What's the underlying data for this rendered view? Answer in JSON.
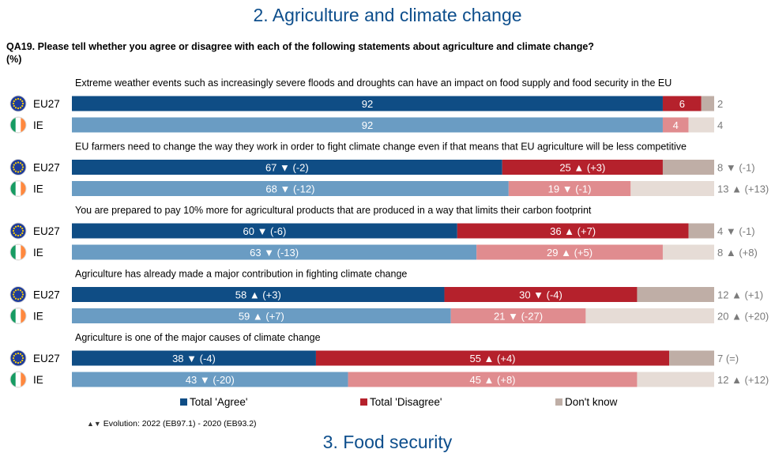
{
  "page_title": "2. Agriculture and climate change",
  "next_section_title": "3. Food security",
  "question": "QA19. Please tell whether you agree or disagree with each of the following statements about agriculture and climate change?",
  "unit": "(%)",
  "legend": {
    "agree": "Total 'Agree'",
    "disagree": "Total 'Disagree'",
    "dont_know": "Don't know"
  },
  "evolution_note": "Evolution: 2022 (EB97.1) - 2020 (EB93.2)",
  "colors": {
    "eu_agree": "#0f4d85",
    "ie_agree": "#6a9cc3",
    "eu_disagree": "#b5212c",
    "ie_disagree": "#e08c8f",
    "eu_dk": "#bfaea6",
    "ie_dk": "#e6dcd6",
    "arrow": "#8a8a8a"
  },
  "chart_data": {
    "type": "bar",
    "orientation": "horizontal-stacked",
    "unit": "%",
    "xlim": [
      0,
      100
    ],
    "series_names": [
      "Total 'Agree'",
      "Total 'Disagree'",
      "Don't know"
    ],
    "statements": [
      {
        "label": "Extreme weather events such as increasingly severe floods and droughts can have an impact on food supply and food security in the EU",
        "rows": [
          {
            "country": "EU27",
            "agree": 92,
            "agree_change": "",
            "disagree": 6,
            "disagree_change": "",
            "dont_know": 2,
            "dont_know_change": ""
          },
          {
            "country": "IE",
            "agree": 92,
            "agree_change": "",
            "disagree": 4,
            "disagree_change": "",
            "dont_know": 4,
            "dont_know_change": ""
          }
        ]
      },
      {
        "label": "EU farmers need to change the way they work in order to fight climate change even if that means that EU agriculture will be less competitive",
        "rows": [
          {
            "country": "EU27",
            "agree": 67,
            "agree_change": "(-2)",
            "disagree": 25,
            "disagree_change": "(+3)",
            "dont_know": 8,
            "dont_know_change": "(-1)"
          },
          {
            "country": "IE",
            "agree": 68,
            "agree_change": "(-12)",
            "disagree": 19,
            "disagree_change": "(-1)",
            "dont_know": 13,
            "dont_know_change": "(+13)"
          }
        ]
      },
      {
        "label": "You are prepared to pay 10% more for agricultural products that are produced in a way that limits their carbon footprint",
        "rows": [
          {
            "country": "EU27",
            "agree": 60,
            "agree_change": "(-6)",
            "disagree": 36,
            "disagree_change": "(+7)",
            "dont_know": 4,
            "dont_know_change": "(-1)"
          },
          {
            "country": "IE",
            "agree": 63,
            "agree_change": "(-13)",
            "disagree": 29,
            "disagree_change": "(+5)",
            "dont_know": 8,
            "dont_know_change": "(+8)"
          }
        ]
      },
      {
        "label": "Agriculture has already made a major contribution in fighting climate change",
        "rows": [
          {
            "country": "EU27",
            "agree": 58,
            "agree_change": "(+3)",
            "disagree": 30,
            "disagree_change": "(-4)",
            "dont_know": 12,
            "dont_know_change": "(+1)"
          },
          {
            "country": "IE",
            "agree": 59,
            "agree_change": "(+7)",
            "disagree": 21,
            "disagree_change": "(-27)",
            "dont_know": 20,
            "dont_know_change": "(+20)"
          }
        ]
      },
      {
        "label": "Agriculture is one of the major causes of climate change",
        "rows": [
          {
            "country": "EU27",
            "agree": 38,
            "agree_change": "(-4)",
            "disagree": 55,
            "disagree_change": "(+4)",
            "dont_know": 7,
            "dont_know_change": "(=)"
          },
          {
            "country": "IE",
            "agree": 43,
            "agree_change": "(-20)",
            "disagree": 45,
            "disagree_change": "(+8)",
            "dont_know": 12,
            "dont_know_change": "(+12)"
          }
        ]
      }
    ]
  }
}
